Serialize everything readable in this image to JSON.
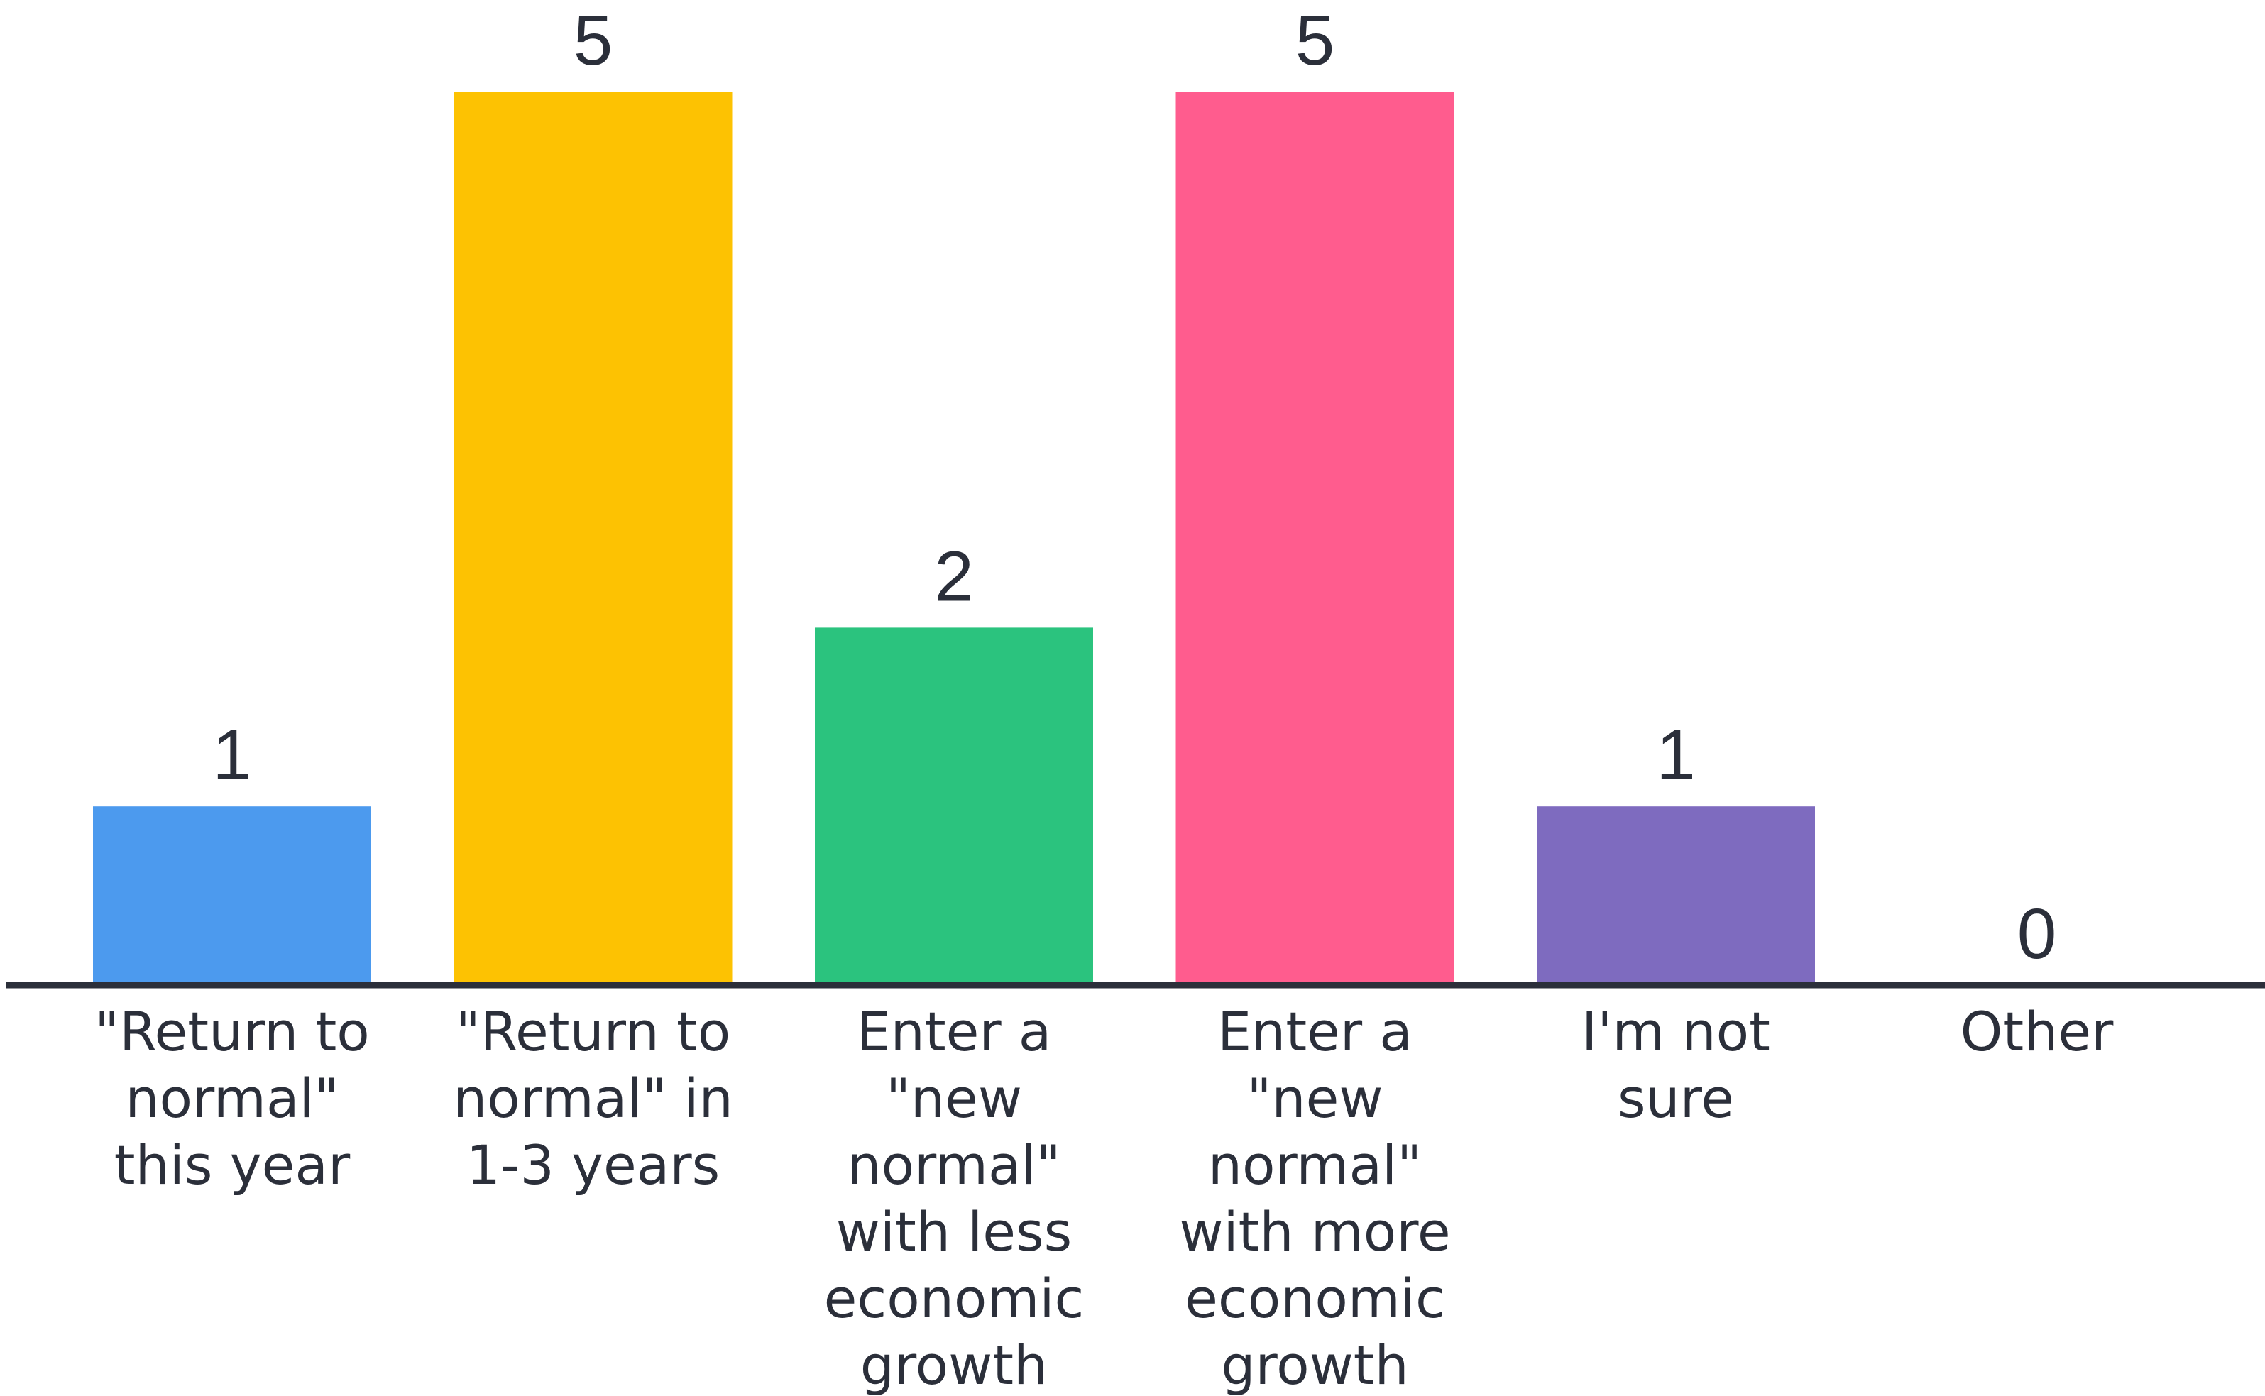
{
  "chart_data": {
    "type": "bar",
    "categories": [
      [
        "\"Return to",
        "normal\"",
        "this year"
      ],
      [
        "\"Return to",
        "normal\" in",
        "1-3 years"
      ],
      [
        "Enter a",
        "\"new",
        "normal\"",
        "with less",
        "economic",
        "growth"
      ],
      [
        "Enter a",
        "\"new",
        "normal\"",
        "with more",
        "economic",
        "growth"
      ],
      [
        "I'm not",
        "sure"
      ],
      [
        "Other"
      ]
    ],
    "values": [
      1,
      5,
      2,
      5,
      1,
      0
    ],
    "colors": [
      "#4c9aee",
      "#fdc202",
      "#2bc37e",
      "#ff5c8e",
      "#7e6bbf",
      "#999999"
    ],
    "ylim": [
      0,
      5
    ],
    "axis_color": "#2b2f3a",
    "grid": false,
    "legend": "none",
    "title": "",
    "xlabel": "",
    "ylabel": ""
  }
}
